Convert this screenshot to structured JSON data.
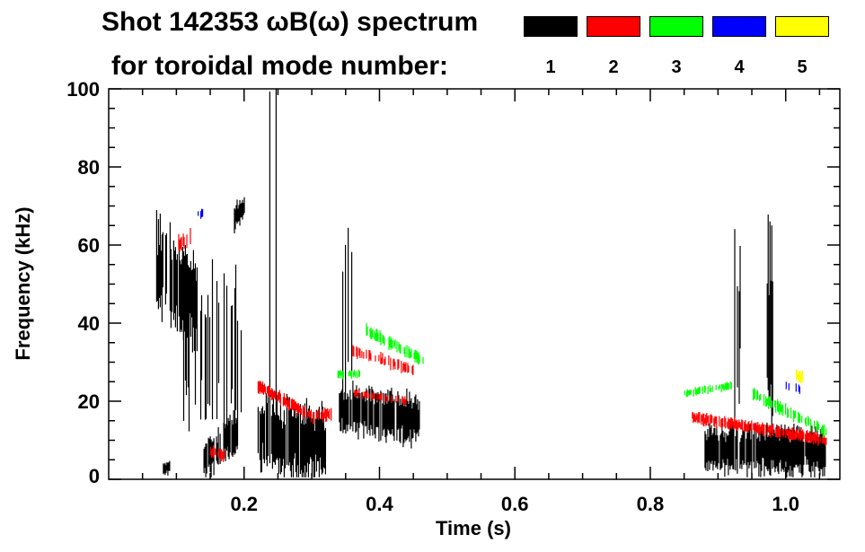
{
  "chart_data": {
    "type": "heatmap",
    "title_line1": "Shot 142353 ωB(ω) spectrum",
    "title_line2": "for toroidal mode number:",
    "xlabel": "Time (s)",
    "ylabel": "Frequency (kHz)",
    "xlim": [
      0,
      1.08
    ],
    "ylim": [
      0,
      100
    ],
    "xticks": [
      0.2,
      0.4,
      0.6,
      0.8,
      1.0
    ],
    "xtick_labels": [
      "0.2",
      "0.4",
      "0.6",
      "0.8",
      "1.0"
    ],
    "yticks": [
      0,
      20,
      40,
      60,
      80,
      100
    ],
    "ytick_labels": [
      "0",
      "20",
      "40",
      "60",
      "80",
      "100"
    ],
    "legend": [
      {
        "mode": "1",
        "color": "#000000"
      },
      {
        "mode": "2",
        "color": "#ff0000"
      },
      {
        "mode": "3",
        "color": "#00ff00"
      },
      {
        "mode": "4",
        "color": "#0000ff"
      },
      {
        "mode": "5",
        "color": "#ffff00"
      }
    ],
    "features": [
      {
        "mode": 1,
        "t": [
          0.07,
          0.13
        ],
        "f": [
          55,
          45
        ],
        "width": 22,
        "density": 0.9
      },
      {
        "mode": 1,
        "t": [
          0.11,
          0.2
        ],
        "f": [
          35,
          30
        ],
        "width": 40,
        "density": 0.35
      },
      {
        "mode": 1,
        "t": [
          0.08,
          0.09
        ],
        "f": [
          3,
          3
        ],
        "width": 3,
        "density": 0.9
      },
      {
        "mode": 1,
        "t": [
          0.14,
          0.19
        ],
        "f": [
          5,
          12
        ],
        "width": 10,
        "density": 0.7
      },
      {
        "mode": 1,
        "t": [
          0.185,
          0.2
        ],
        "f": [
          67,
          70
        ],
        "width": 6,
        "density": 0.9
      },
      {
        "mode": 1,
        "t": [
          0.22,
          0.32
        ],
        "f": [
          12,
          8
        ],
        "width": 18,
        "density": 0.95
      },
      {
        "mode": 1,
        "t": [
          0.22,
          0.26
        ],
        "f": [
          55,
          60
        ],
        "width": 85,
        "density": 0.15
      },
      {
        "mode": 1,
        "t": [
          0.34,
          0.46
        ],
        "f": [
          18,
          15
        ],
        "width": 12,
        "density": 0.85
      },
      {
        "mode": 1,
        "t": [
          0.345,
          0.36
        ],
        "f": [
          40,
          42
        ],
        "width": 45,
        "density": 0.3
      },
      {
        "mode": 1,
        "t": [
          0.88,
          1.06
        ],
        "f": [
          8,
          7
        ],
        "width": 11,
        "density": 0.95
      },
      {
        "mode": 1,
        "t": [
          0.924,
          0.932
        ],
        "f": [
          40,
          40
        ],
        "width": 48,
        "density": 0.8
      },
      {
        "mode": 1,
        "t": [
          0.972,
          0.98
        ],
        "f": [
          40,
          40
        ],
        "width": 48,
        "density": 0.8
      },
      {
        "mode": 2,
        "t": [
          0.22,
          0.3
        ],
        "f": [
          24,
          16
        ],
        "width": 3,
        "density": 0.8
      },
      {
        "mode": 2,
        "t": [
          0.3,
          0.33
        ],
        "f": [
          16,
          17
        ],
        "width": 3,
        "density": 0.7
      },
      {
        "mode": 2,
        "t": [
          0.36,
          0.45
        ],
        "f": [
          33,
          28
        ],
        "width": 3,
        "density": 0.5
      },
      {
        "mode": 2,
        "t": [
          0.36,
          0.44
        ],
        "f": [
          22,
          20
        ],
        "width": 2,
        "density": 0.6
      },
      {
        "mode": 2,
        "t": [
          0.86,
          1.06
        ],
        "f": [
          16,
          10
        ],
        "width": 3,
        "density": 0.85
      },
      {
        "mode": 2,
        "t": [
          0.1,
          0.12
        ],
        "f": [
          60,
          62
        ],
        "width": 4,
        "density": 0.5
      },
      {
        "mode": 2,
        "t": [
          0.15,
          0.17
        ],
        "f": [
          7,
          6
        ],
        "width": 3,
        "density": 0.7
      },
      {
        "mode": 3,
        "t": [
          0.33,
          0.37
        ],
        "f": [
          27,
          27
        ],
        "width": 2,
        "density": 0.6
      },
      {
        "mode": 3,
        "t": [
          0.38,
          0.47
        ],
        "f": [
          38,
          30
        ],
        "width": 3,
        "density": 0.6
      },
      {
        "mode": 3,
        "t": [
          0.85,
          0.92
        ],
        "f": [
          22,
          24
        ],
        "width": 2,
        "density": 0.6
      },
      {
        "mode": 3,
        "t": [
          0.95,
          1.06
        ],
        "f": [
          22,
          12
        ],
        "width": 3,
        "density": 0.6
      },
      {
        "mode": 4,
        "t": [
          1.0,
          1.02
        ],
        "f": [
          24,
          23
        ],
        "width": 2,
        "density": 0.6
      },
      {
        "mode": 4,
        "t": [
          0.13,
          0.14
        ],
        "f": [
          68,
          68
        ],
        "width": 2,
        "density": 0.5
      },
      {
        "mode": 5,
        "t": [
          1.015,
          1.025
        ],
        "f": [
          27,
          26
        ],
        "width": 3,
        "density": 0.7
      }
    ]
  }
}
